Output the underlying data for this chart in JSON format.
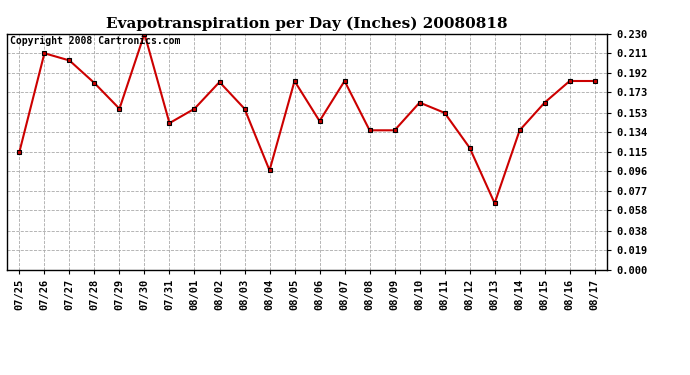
{
  "title": "Evapotranspiration per Day (Inches) 20080818",
  "copyright_text": "Copyright 2008 Cartronics.com",
  "x_labels": [
    "07/25",
    "07/26",
    "07/27",
    "07/28",
    "07/29",
    "07/30",
    "07/31",
    "08/01",
    "08/02",
    "08/03",
    "08/04",
    "08/05",
    "08/06",
    "08/07",
    "08/08",
    "08/09",
    "08/10",
    "08/11",
    "08/12",
    "08/13",
    "08/14",
    "08/15",
    "08/16",
    "08/17"
  ],
  "y_values": [
    0.115,
    0.211,
    0.204,
    0.182,
    0.157,
    0.23,
    0.143,
    0.157,
    0.183,
    0.157,
    0.097,
    0.184,
    0.145,
    0.184,
    0.136,
    0.136,
    0.163,
    0.153,
    0.119,
    0.065,
    0.136,
    0.163,
    0.184,
    0.184
  ],
  "y_min": 0.0,
  "y_max": 0.23,
  "y_ticks": [
    0.0,
    0.019,
    0.038,
    0.058,
    0.077,
    0.096,
    0.115,
    0.134,
    0.153,
    0.173,
    0.192,
    0.211,
    0.23
  ],
  "line_color": "#cc0000",
  "marker": "s",
  "marker_size": 3,
  "marker_color": "#000000",
  "grid_color": "#aaaaaa",
  "background_color": "#ffffff",
  "title_fontsize": 11,
  "tick_fontsize": 7.5,
  "copyright_fontsize": 7
}
